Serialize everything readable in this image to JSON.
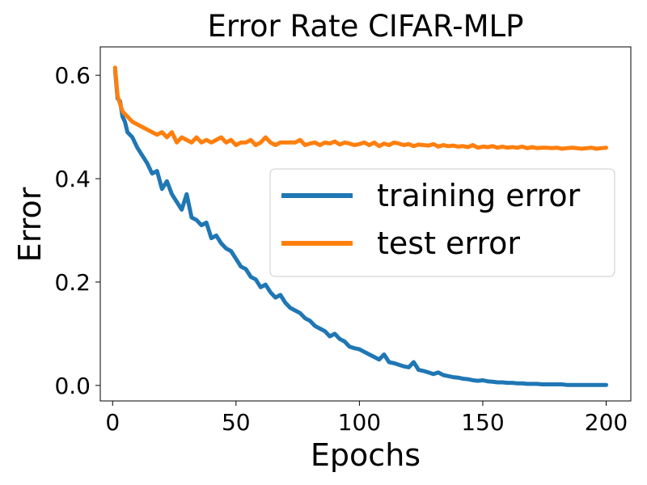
{
  "chart_data": {
    "type": "line",
    "title": "Error Rate CIFAR-MLP",
    "xlabel": "Epochs",
    "ylabel": "Error",
    "xlim": [
      -5,
      210
    ],
    "ylim": [
      -0.03,
      0.655
    ],
    "xticks": [
      0,
      50,
      100,
      150,
      200
    ],
    "xtick_labels": [
      "0",
      "50",
      "100",
      "150",
      "200"
    ],
    "yticks": [
      0.0,
      0.2,
      0.4,
      0.6
    ],
    "ytick_labels": [
      "0.0",
      "0.2",
      "0.4",
      "0.6"
    ],
    "grid": false,
    "legend_position": "center-right",
    "series": [
      {
        "name": "training error",
        "color": "#1f77b4",
        "x": [
          1,
          2,
          3,
          4,
          5,
          6,
          8,
          10,
          12,
          14,
          16,
          18,
          20,
          22,
          24,
          26,
          28,
          30,
          32,
          34,
          36,
          38,
          40,
          42,
          44,
          46,
          48,
          50,
          52,
          54,
          56,
          58,
          60,
          62,
          64,
          66,
          68,
          70,
          72,
          74,
          76,
          78,
          80,
          82,
          84,
          86,
          88,
          90,
          92,
          94,
          96,
          98,
          100,
          102,
          104,
          106,
          108,
          110,
          112,
          114,
          116,
          118,
          120,
          122,
          124,
          126,
          128,
          130,
          132,
          134,
          136,
          138,
          140,
          142,
          144,
          146,
          148,
          150,
          152,
          154,
          156,
          158,
          160,
          162,
          164,
          166,
          168,
          170,
          172,
          174,
          176,
          178,
          180,
          182,
          184,
          186,
          188,
          190,
          192,
          194,
          196,
          198,
          200
        ],
        "values": [
          0.61,
          0.555,
          0.55,
          0.52,
          0.51,
          0.49,
          0.48,
          0.46,
          0.445,
          0.43,
          0.41,
          0.415,
          0.38,
          0.395,
          0.37,
          0.355,
          0.34,
          0.37,
          0.325,
          0.32,
          0.31,
          0.315,
          0.285,
          0.29,
          0.275,
          0.265,
          0.26,
          0.245,
          0.23,
          0.225,
          0.21,
          0.205,
          0.19,
          0.195,
          0.18,
          0.17,
          0.175,
          0.16,
          0.15,
          0.145,
          0.14,
          0.13,
          0.125,
          0.115,
          0.11,
          0.105,
          0.095,
          0.1,
          0.09,
          0.085,
          0.075,
          0.072,
          0.07,
          0.065,
          0.06,
          0.055,
          0.05,
          0.06,
          0.045,
          0.043,
          0.04,
          0.037,
          0.035,
          0.045,
          0.03,
          0.028,
          0.025,
          0.022,
          0.025,
          0.02,
          0.018,
          0.016,
          0.015,
          0.013,
          0.012,
          0.01,
          0.009,
          0.01,
          0.008,
          0.007,
          0.006,
          0.006,
          0.005,
          0.005,
          0.004,
          0.004,
          0.003,
          0.003,
          0.003,
          0.002,
          0.002,
          0.002,
          0.002,
          0.002,
          0.001,
          0.001,
          0.001,
          0.001,
          0.001,
          0.001,
          0.001,
          0.001,
          0.001
        ]
      },
      {
        "name": "test error",
        "color": "#ff7f0e",
        "x": [
          1,
          2,
          3,
          4,
          5,
          6,
          8,
          10,
          12,
          14,
          16,
          18,
          20,
          22,
          24,
          26,
          28,
          30,
          32,
          34,
          36,
          38,
          40,
          42,
          44,
          46,
          48,
          50,
          52,
          54,
          56,
          58,
          60,
          62,
          64,
          66,
          68,
          70,
          72,
          74,
          76,
          78,
          80,
          82,
          84,
          86,
          88,
          90,
          92,
          94,
          96,
          98,
          100,
          102,
          104,
          106,
          108,
          110,
          112,
          114,
          116,
          118,
          120,
          122,
          124,
          126,
          128,
          130,
          132,
          134,
          136,
          138,
          140,
          142,
          144,
          146,
          148,
          150,
          152,
          154,
          156,
          158,
          160,
          162,
          164,
          166,
          168,
          170,
          172,
          174,
          176,
          178,
          180,
          182,
          184,
          186,
          188,
          190,
          192,
          194,
          196,
          198,
          200
        ],
        "values": [
          0.615,
          0.56,
          0.545,
          0.53,
          0.525,
          0.52,
          0.51,
          0.505,
          0.5,
          0.495,
          0.49,
          0.485,
          0.49,
          0.48,
          0.49,
          0.47,
          0.48,
          0.475,
          0.47,
          0.48,
          0.47,
          0.475,
          0.47,
          0.475,
          0.48,
          0.47,
          0.475,
          0.465,
          0.47,
          0.47,
          0.475,
          0.465,
          0.47,
          0.48,
          0.47,
          0.465,
          0.47,
          0.47,
          0.47,
          0.47,
          0.475,
          0.465,
          0.468,
          0.47,
          0.465,
          0.47,
          0.468,
          0.472,
          0.466,
          0.47,
          0.468,
          0.465,
          0.467,
          0.47,
          0.465,
          0.47,
          0.463,
          0.468,
          0.465,
          0.47,
          0.468,
          0.465,
          0.467,
          0.463,
          0.466,
          0.465,
          0.464,
          0.467,
          0.462,
          0.465,
          0.463,
          0.464,
          0.462,
          0.463,
          0.461,
          0.465,
          0.46,
          0.462,
          0.461,
          0.463,
          0.46,
          0.462,
          0.46,
          0.461,
          0.46,
          0.462,
          0.459,
          0.461,
          0.459,
          0.46,
          0.46,
          0.459,
          0.46,
          0.458,
          0.459,
          0.46,
          0.459,
          0.458,
          0.459,
          0.46,
          0.458,
          0.459,
          0.46
        ]
      }
    ]
  }
}
